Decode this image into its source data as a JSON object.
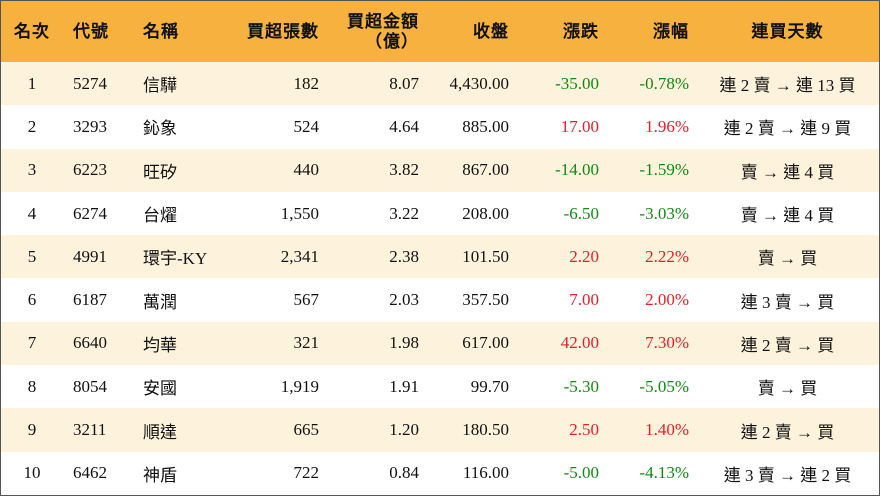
{
  "table": {
    "header": [
      "名次",
      "代號",
      "名稱",
      "買超張數",
      "買超金額\n（億）",
      "收盤",
      "漲跌",
      "漲幅",
      "連買天數"
    ],
    "rows": [
      [
        "1",
        "5274",
        "信驊",
        "182",
        "8.07",
        "4,430.00",
        "-35.00",
        "-0.78%",
        "連 2 賣 → 連 13 買"
      ],
      [
        "2",
        "3293",
        "鈊象",
        "524",
        "4.64",
        "885.00",
        "17.00",
        "1.96%",
        "連 2 賣 → 連 9 買"
      ],
      [
        "3",
        "6223",
        "旺矽",
        "440",
        "3.82",
        "867.00",
        "-14.00",
        "-1.59%",
        "賣 → 連 4 買"
      ],
      [
        "4",
        "6274",
        "台燿",
        "1,550",
        "3.22",
        "208.00",
        "-6.50",
        "-3.03%",
        "賣 → 連 4 買"
      ],
      [
        "5",
        "4991",
        "環宇-KY",
        "2,341",
        "2.38",
        "101.50",
        "2.20",
        "2.22%",
        "賣 → 買"
      ],
      [
        "6",
        "6187",
        "萬潤",
        "567",
        "2.03",
        "357.50",
        "7.00",
        "2.00%",
        "連 3 賣 → 買"
      ],
      [
        "7",
        "6640",
        "均華",
        "321",
        "1.98",
        "617.00",
        "42.00",
        "7.30%",
        "連 2 賣 → 買"
      ],
      [
        "8",
        "8054",
        "安國",
        "1,919",
        "1.91",
        "99.70",
        "-5.30",
        "-5.05%",
        "賣 → 買"
      ],
      [
        "9",
        "3211",
        "順達",
        "665",
        "1.20",
        "180.50",
        "2.50",
        "1.40%",
        "連 2 賣 → 買"
      ],
      [
        "10",
        "6462",
        "神盾",
        "722",
        "0.84",
        "116.00",
        "-5.00",
        "-4.13%",
        "連 3 賣 → 連 2 買"
      ]
    ]
  }
}
